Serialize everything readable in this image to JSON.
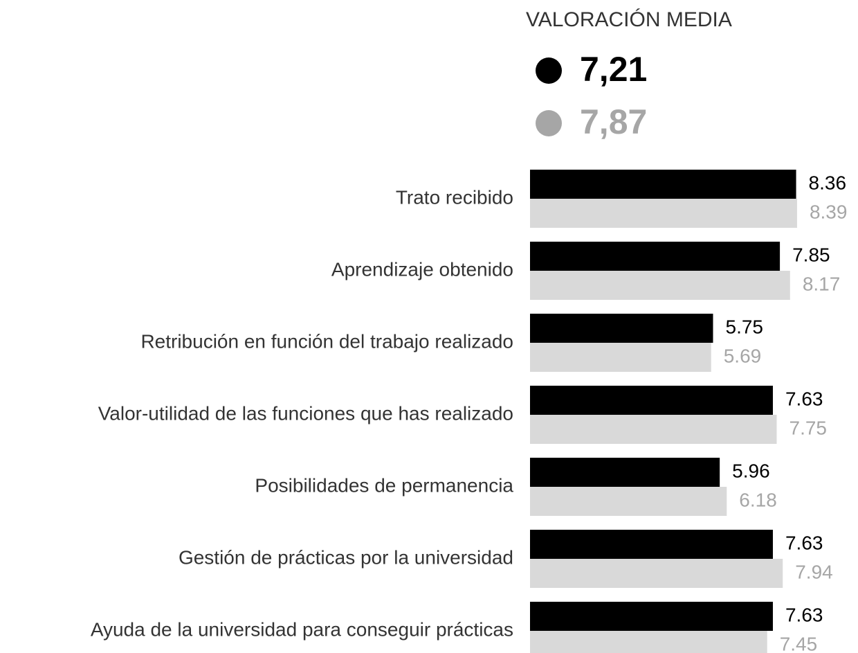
{
  "chart_data": {
    "type": "hbar",
    "title": "VALORACIÓN MEDIA",
    "categories": [
      "Trato recibido",
      "Aprendizaje obtenido",
      "Retribución en función del trabajo realizado",
      "Valor-utilidad de las funciones que has realizado",
      "Posibilidades de permanencia",
      "Gestión de prácticas por la universidad",
      "Ayuda de la universidad para conseguir prácticas"
    ],
    "series": [
      {
        "name": "7,21",
        "color": "#000000",
        "label_color": "#000000",
        "values": [
          8.36,
          7.85,
          5.75,
          7.63,
          5.96,
          7.63,
          7.63
        ]
      },
      {
        "name": "7,87",
        "color": "#d9d9d9",
        "label_color": "#a6a6a6",
        "values": [
          8.39,
          8.17,
          5.69,
          7.75,
          6.18,
          7.94,
          7.45
        ]
      }
    ],
    "xlim": [
      0,
      10
    ]
  }
}
